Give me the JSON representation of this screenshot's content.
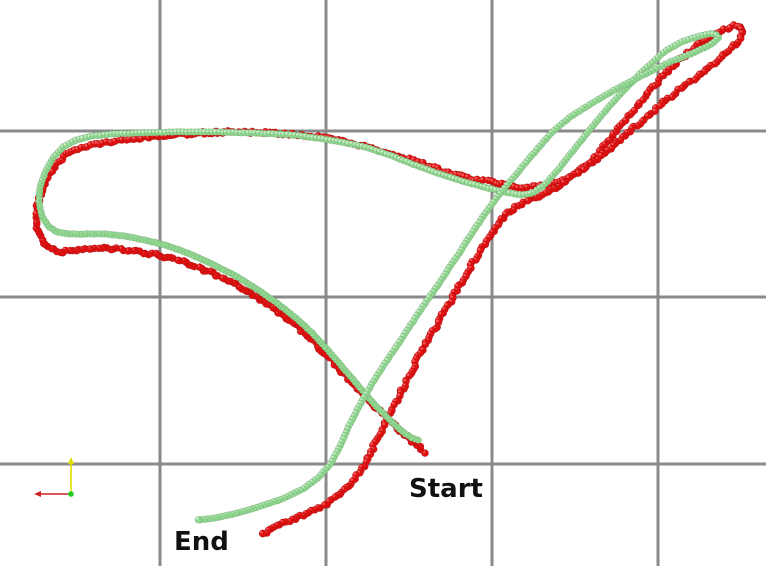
{
  "labels": {
    "start": "Start",
    "end": "End"
  },
  "colors": {
    "background": "#ffffff",
    "grid": "#8a8a8a",
    "estimated_trajectory": "#dd1111",
    "estimated_trajectory_highlight": "#ff6b6b",
    "reference_trajectory": "#8fd68f",
    "reference_trajectory_highlight": "#d2f2d2",
    "axis_x": "#cc2222",
    "axis_y": "#dddd00",
    "axis_origin": "#22cc22"
  },
  "icons": {
    "orientation_axes": "axes-triad-icon"
  }
}
